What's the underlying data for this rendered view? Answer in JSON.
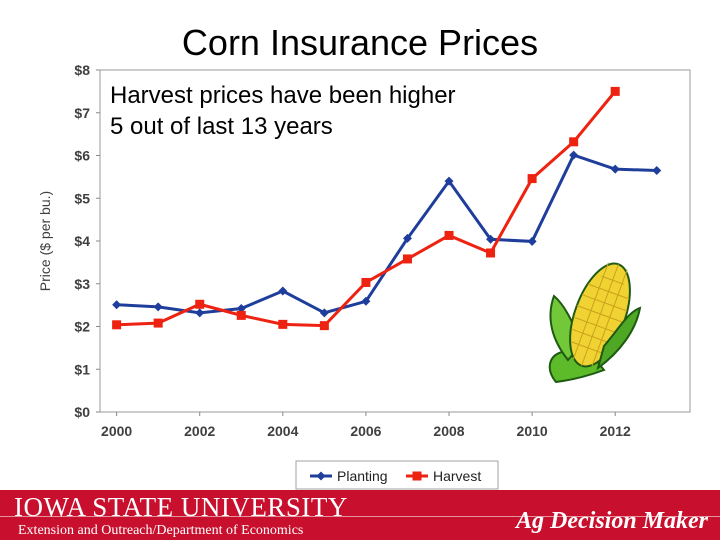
{
  "slide": {
    "title": "Corn Insurance Prices",
    "annotation_line1": "Harvest prices have been higher",
    "annotation_line2": "5 out of last 13 years"
  },
  "footer": {
    "university": "IOWA STATE UNIVERSITY",
    "department": "Extension and Outreach/Department of Economics",
    "brand": "Ag Decision Maker",
    "color": "#c8102e"
  },
  "chart_data": {
    "type": "line",
    "x": [
      2000,
      2001,
      2002,
      2003,
      2004,
      2005,
      2006,
      2007,
      2008,
      2009,
      2010,
      2011,
      2012,
      2013
    ],
    "xticks": [
      "2000",
      "2002",
      "2004",
      "2006",
      "2008",
      "2010",
      "2012"
    ],
    "yticks": [
      "$0",
      "$1",
      "$2",
      "$3",
      "$4",
      "$5",
      "$6",
      "$7",
      "$8"
    ],
    "ylabel": "Price ($ per bu.)",
    "ylim": [
      0,
      8
    ],
    "grid": false,
    "legend_position": "bottom",
    "series": [
      {
        "name": "Planting",
        "color": "#1f3e9c",
        "marker": "diamond",
        "values": [
          2.51,
          2.46,
          2.32,
          2.42,
          2.83,
          2.32,
          2.59,
          4.06,
          5.4,
          4.04,
          3.99,
          6.01,
          5.68,
          5.65
        ]
      },
      {
        "name": "Harvest",
        "color": "#ee2211",
        "marker": "square",
        "values": [
          2.04,
          2.08,
          2.52,
          2.26,
          2.05,
          2.02,
          3.03,
          3.58,
          4.13,
          3.72,
          5.46,
          6.32,
          7.5,
          null
        ]
      }
    ]
  }
}
